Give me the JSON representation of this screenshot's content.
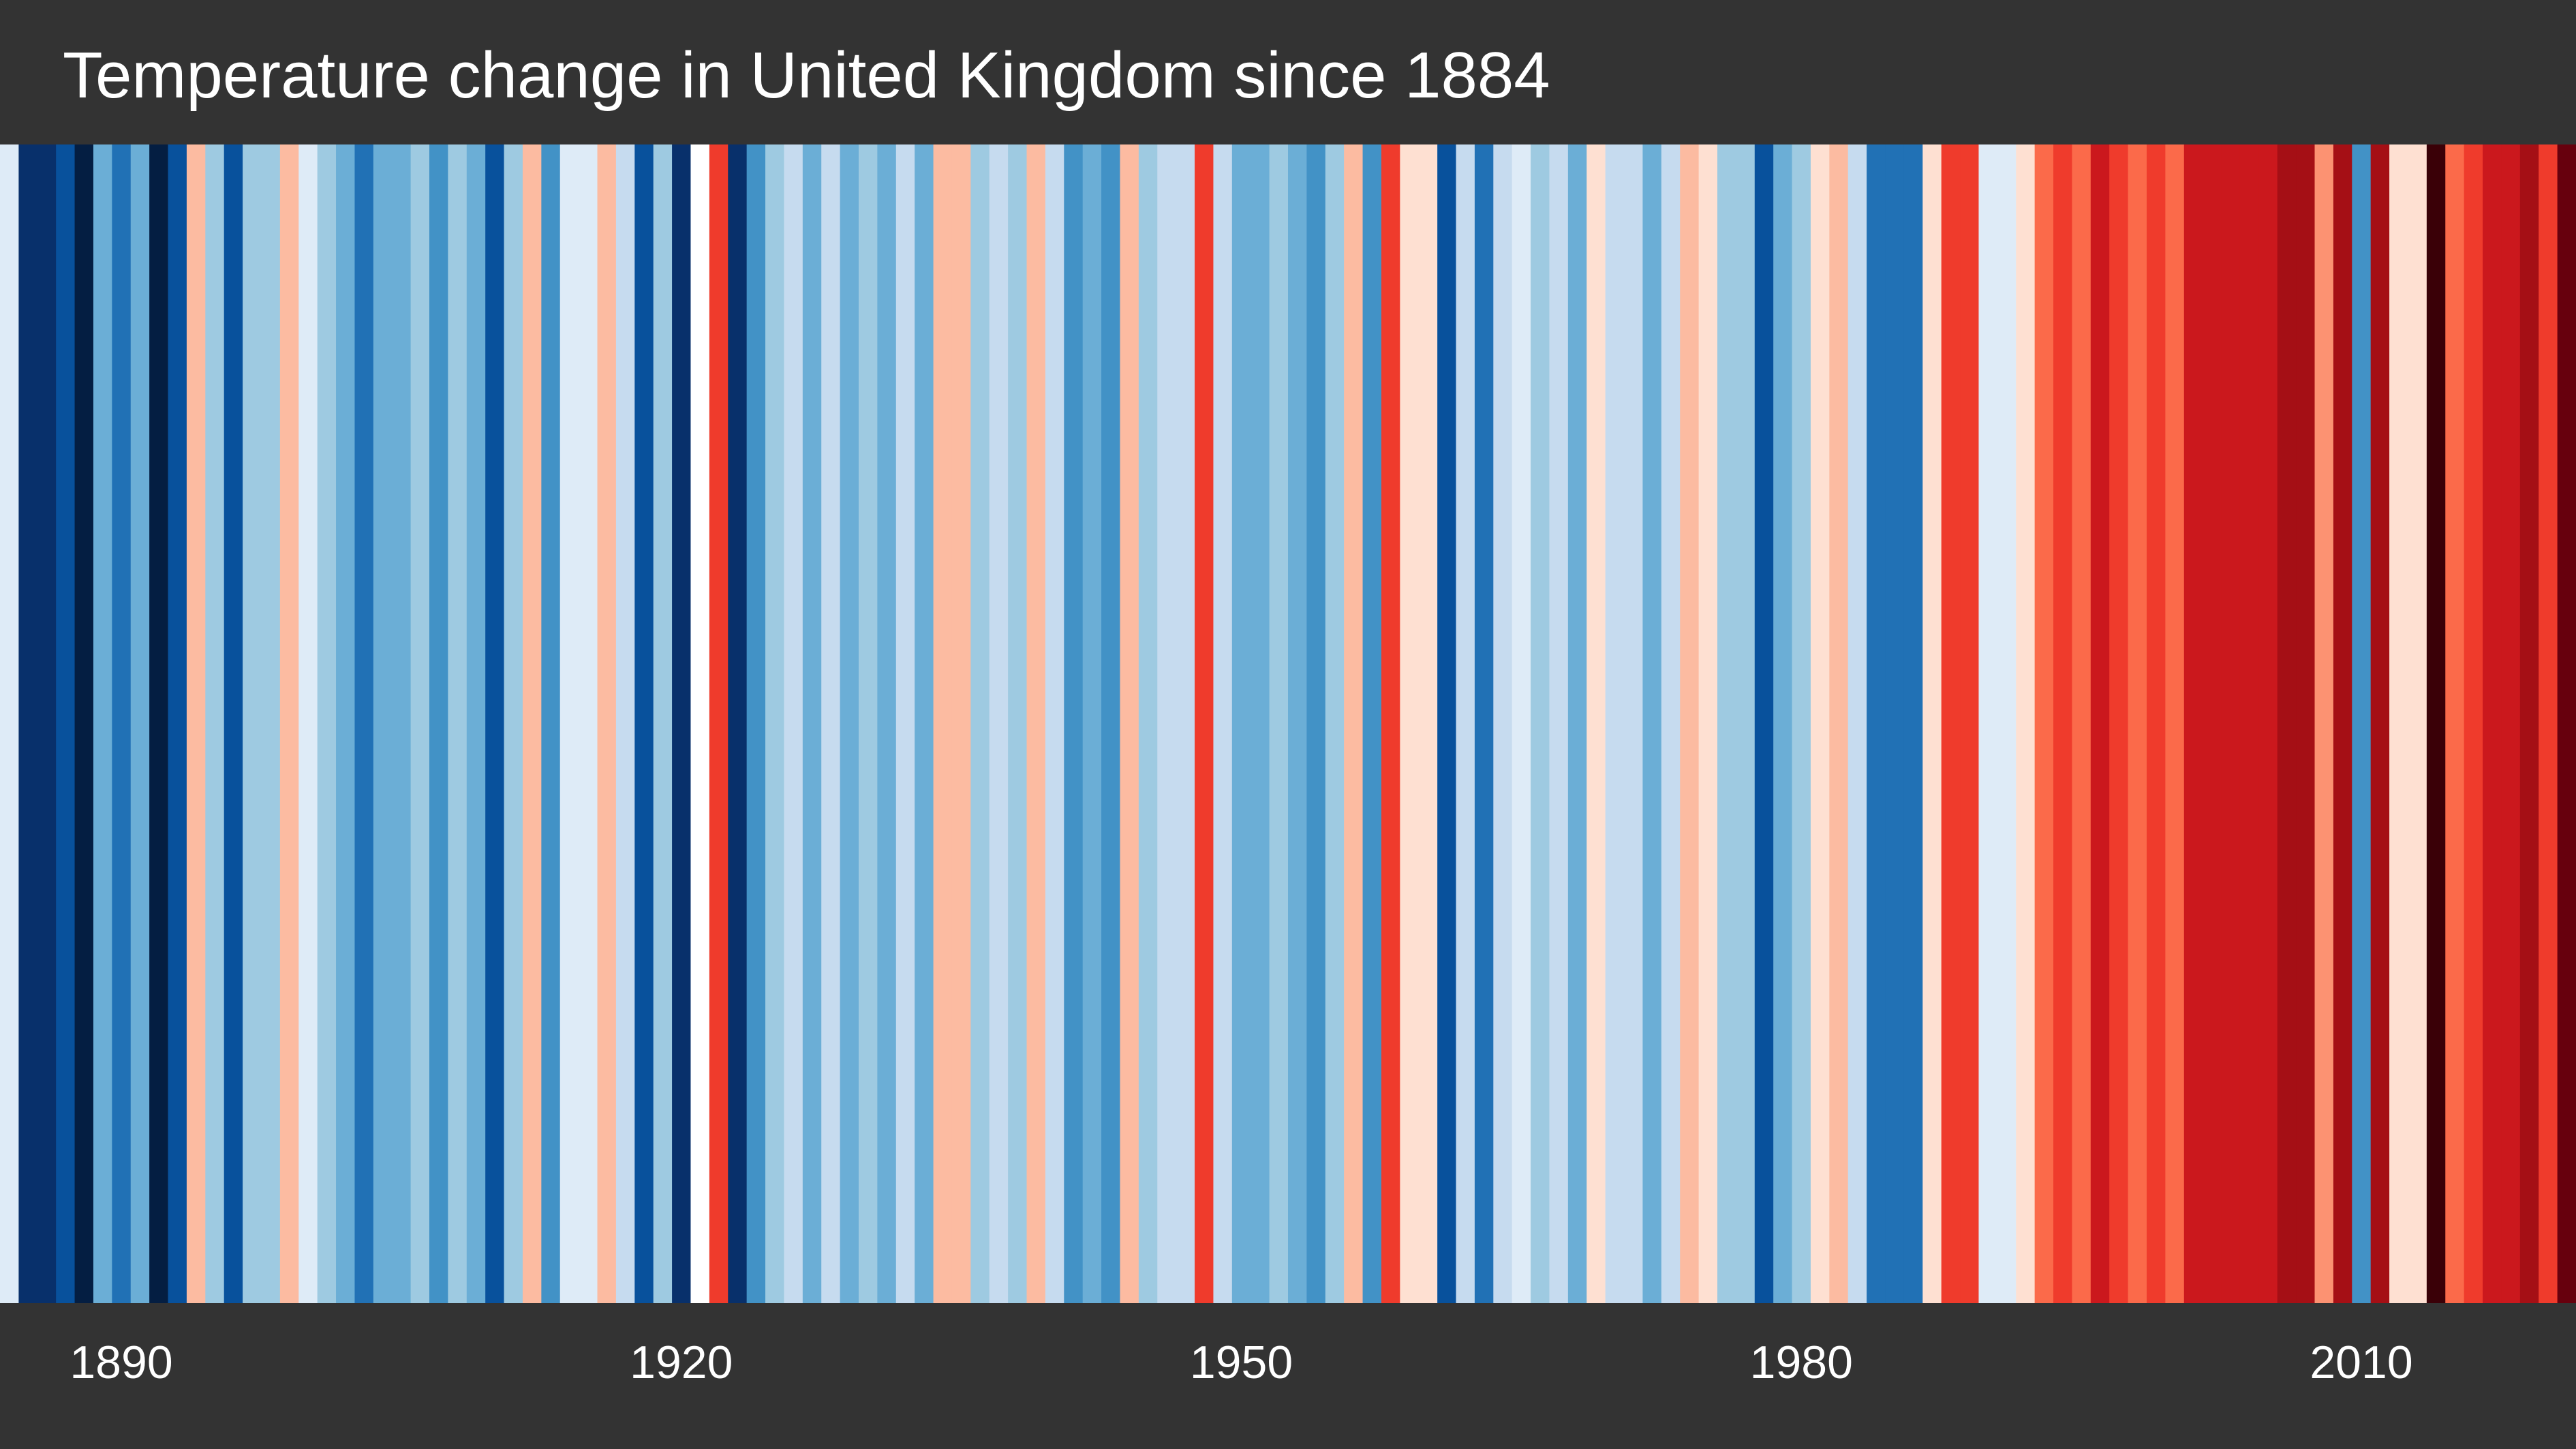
{
  "chart_data": {
    "type": "heatmap",
    "title": "Temperature change in United Kingdom since 1884",
    "xlabel": "",
    "ylabel": "",
    "start_year": 1884,
    "end_year": 2021,
    "x_ticks": [
      1890,
      1920,
      1950,
      1980,
      2010
    ],
    "grid": false,
    "legend": "none",
    "colorscale_levels": [
      -4,
      -3,
      -2,
      -1,
      0,
      1,
      2,
      3,
      4,
      5,
      6
    ],
    "level_colors": [
      "#08306b",
      "#08519c",
      "#2171b5",
      "#4292c6",
      "#6baed6",
      "#9ecae1",
      "#c6dbef",
      "#deebf7",
      "#fee0d2",
      "#fcbba1",
      "#fc9272",
      "#fb6a4a",
      "#ef3b2c",
      "#cb181d",
      "#a50f15",
      "#67000d",
      "#08306b",
      "#041e42",
      "#3a0007",
      "#4a000b"
    ],
    "years": [
      1884,
      1885,
      1886,
      1887,
      1888,
      1889,
      1890,
      1891,
      1892,
      1893,
      1894,
      1895,
      1896,
      1897,
      1898,
      1899,
      1900,
      1901,
      1902,
      1903,
      1904,
      1905,
      1906,
      1907,
      1908,
      1909,
      1910,
      1911,
      1912,
      1913,
      1914,
      1915,
      1916,
      1917,
      1918,
      1919,
      1920,
      1921,
      1922,
      1923,
      1924,
      1925,
      1926,
      1927,
      1928,
      1929,
      1930,
      1931,
      1932,
      1933,
      1934,
      1935,
      1936,
      1937,
      1938,
      1939,
      1940,
      1941,
      1942,
      1943,
      1944,
      1945,
      1946,
      1947,
      1948,
      1949,
      1950,
      1951,
      1952,
      1953,
      1954,
      1955,
      1956,
      1957,
      1958,
      1959,
      1960,
      1961,
      1962,
      1963,
      1964,
      1965,
      1966,
      1967,
      1968,
      1969,
      1970,
      1971,
      1972,
      1973,
      1974,
      1975,
      1976,
      1977,
      1978,
      1979,
      1980,
      1981,
      1982,
      1983,
      1984,
      1985,
      1986,
      1987,
      1988,
      1989,
      1990,
      1991,
      1992,
      1993,
      1994,
      1995,
      1996,
      1997,
      1998,
      1999,
      2000,
      2001,
      2002,
      2003,
      2004,
      2005,
      2006,
      2007,
      2008,
      2009,
      2010,
      2011,
      2012,
      2013,
      2014,
      2015,
      2016,
      2017,
      2018,
      2019,
      2020,
      2021
    ],
    "colors": [
      "#deebf7",
      "#08306b",
      "#08306b",
      "#08519c",
      "#041e42",
      "#6baed6",
      "#2171b5",
      "#6baed6",
      "#041e42",
      "#08519c",
      "#fcbba1",
      "#9ecae1",
      "#08519c",
      "#9ecae1",
      "#9ecae1",
      "#fcbba1",
      "#deebf7",
      "#9ecae1",
      "#6baed6",
      "#2171b5",
      "#6baed6",
      "#6baed6",
      "#9ecae1",
      "#4292c6",
      "#9ecae1",
      "#6baed6",
      "#08519c",
      "#9ecae1",
      "#fcbba1",
      "#4292c6",
      "#deebf7",
      "#deebf7",
      "#fcbba1",
      "#c6dbef",
      "#08519c",
      "#9ecae1",
      "#08306b",
      "#ffffff",
      "#ef3b2c",
      "#08306b",
      "#4292c6",
      "#9ecae1",
      "#c6dbef",
      "#6baed6",
      "#c6dbef",
      "#6baed6",
      "#9ecae1",
      "#6baed6",
      "#c6dbef",
      "#6baed6",
      "#fcbba1",
      "#fcbba1",
      "#9ecae1",
      "#c6dbef",
      "#9ecae1",
      "#fcbba1",
      "#c6dbef",
      "#4292c6",
      "#6baed6",
      "#4292c6",
      "#fcbba1",
      "#9ecae1",
      "#c6dbef",
      "#c6dbef",
      "#ef3b2c",
      "#c6dbef",
      "#6baed6",
      "#6baed6",
      "#9ecae1",
      "#6baed6",
      "#4292c6",
      "#9ecae1",
      "#fcbba1",
      "#4292c6",
      "#ef3b2c",
      "#fee0d2",
      "#fee0d2",
      "#08519c",
      "#c6dbef",
      "#2171b5",
      "#c6dbef",
      "#deebf7",
      "#9ecae1",
      "#c6dbef",
      "#6baed6",
      "#fee0d2",
      "#c6dbef",
      "#c6dbef",
      "#6baed6",
      "#c6dbef",
      "#fcbba1",
      "#fee0d2",
      "#9ecae1",
      "#9ecae1",
      "#08519c",
      "#6baed6",
      "#9ecae1",
      "#fee0d2",
      "#fcbba1",
      "#c6dbef",
      "#2171b5",
      "#2171b5",
      "#2171b5",
      "#fee0d2",
      "#ef3b2c",
      "#ef3b2c",
      "#deebf7",
      "#deebf7",
      "#fee0d2",
      "#fb6a4a",
      "#ef3b2c",
      "#fb6a4a",
      "#cb181d",
      "#ef3b2c",
      "#fb6a4a",
      "#ef3b2c",
      "#fb6a4a",
      "#cb181d",
      "#cb181d",
      "#cb181d",
      "#cb181d",
      "#cb181d",
      "#a50f15",
      "#a50f15",
      "#fc9272",
      "#a50f15",
      "#4292c6",
      "#a50f15",
      "#fee0d2",
      "#fee0d2",
      "#3a0007",
      "#fb6a4a",
      "#ef3b2c",
      "#cb181d",
      "#cb181d",
      "#a50f15",
      "#ef3b2c",
      "#67000d"
    ]
  }
}
